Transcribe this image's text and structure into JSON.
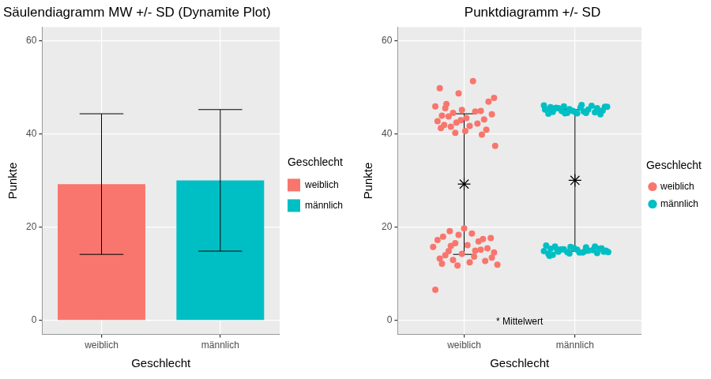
{
  "chart_data": [
    {
      "type": "bar",
      "title": "Säulendiagramm MW +/- SD (Dynamite Plot)",
      "x_label": "Geschlecht",
      "y_label": "Punkte",
      "categories": [
        "weiblich",
        "männlich"
      ],
      "values": [
        29.3,
        30.1
      ],
      "error": [
        15.1,
        15.2
      ],
      "colors": [
        "#F8766D",
        "#00BFC4"
      ],
      "ylim": [
        -3,
        63
      ],
      "yticks": [
        0,
        20,
        40,
        60
      ],
      "grid": true,
      "legend": "right",
      "legend_title": "Geschlecht"
    },
    {
      "type": "scatter",
      "title": "Punktdiagramm +/- SD",
      "x_label": "Geschlecht",
      "y_label": "Punkte",
      "xlim": [
        0.4,
        2.6
      ],
      "xticks": [
        {
          "value": 1,
          "label": "weiblich"
        },
        {
          "value": 2,
          "label": "männlich"
        }
      ],
      "ylim": [
        -3,
        63
      ],
      "yticks": [
        0,
        20,
        40,
        60
      ],
      "grid": true,
      "legend": "right",
      "legend_title": "Geschlecht",
      "annotation": "* Mittelwert",
      "series": [
        {
          "name": "weiblich",
          "color": "#F8766D",
          "marker": "circle",
          "x": [
            0.78,
            1.08,
            0.95,
            1.27,
            1.22,
            0.84,
            0.98,
            1.15,
            0.9,
            1.25,
            0.8,
            0.86,
            1.02,
            1.18,
            0.76,
            0.93,
            1.12,
            0.82,
            1.05,
            0.88,
            0.79,
            1.2,
            1.01,
            0.92,
            1.16,
            1.28,
            0.83,
            1.1,
            0.97,
            0.74,
            1.0,
            0.87,
            1.07,
            0.95,
            0.81,
            1.24,
            0.76,
            1.13,
            0.92,
            1.03,
            0.72,
            1.21,
            1.15,
            0.86,
            1.27,
            0.98,
            0.83,
            1.09,
            0.78,
            0.9,
            1.19,
            1.05,
            0.8,
            0.94,
            0.74,
            1.1,
            0.88,
            1.25,
            1.17,
            1.3
          ],
          "values": [
            49.9,
            51.4,
            48.8,
            47.8,
            47.0,
            46.5,
            45.2,
            45.0,
            44.6,
            44.3,
            44.0,
            43.8,
            43.5,
            43.2,
            42.8,
            42.5,
            42.3,
            42.0,
            41.8,
            41.6,
            41.3,
            41.0,
            40.7,
            40.3,
            39.9,
            37.5,
            45.6,
            44.9,
            43.0,
            46.0,
            19.8,
            19.2,
            18.7,
            18.4,
            18.0,
            17.7,
            17.3,
            17.0,
            16.6,
            16.2,
            15.8,
            15.5,
            15.2,
            14.9,
            14.6,
            14.3,
            14.0,
            13.7,
            13.3,
            13.0,
            12.8,
            12.5,
            12.2,
            11.8,
            6.6,
            15.0,
            16.0,
            13.5,
            17.5,
            12.0
          ]
        },
        {
          "name": "männlich",
          "color": "#00BFC4",
          "marker": "circle",
          "x": [
            1.72,
            1.9,
            2.27,
            1.78,
            2.05,
            2.2,
            1.82,
            1.95,
            2.12,
            1.75,
            2.25,
            1.88,
            2.08,
            1.8,
            2.18,
            1.93,
            2.02,
            1.76,
            2.23,
            2.15,
            1.85,
            1.98,
            2.1,
            2.29,
            1.73,
            2.0,
            1.83,
            2.2,
            1.91,
            2.06,
            1.74,
            1.82,
            1.96,
            2.1,
            2.24,
            1.78,
            1.88,
            2.02,
            2.16,
            2.28,
            1.72,
            1.85,
            1.93,
            2.07,
            2.2,
            1.76,
            1.8,
            1.77,
            1.99,
            2.12,
            2.26,
            1.9,
            2.04,
            2.18,
            1.84,
            1.95,
            2.22,
            2.09,
            1.86,
            2.3
          ],
          "values": [
            46.2,
            46.0,
            45.9,
            45.8,
            45.7,
            45.6,
            45.5,
            45.4,
            45.3,
            45.2,
            45.1,
            45.0,
            44.9,
            44.8,
            44.7,
            44.6,
            44.5,
            44.4,
            44.3,
            46.1,
            45.6,
            45.0,
            44.6,
            45.9,
            45.3,
            44.8,
            45.7,
            45.1,
            44.5,
            46.3,
            16.1,
            15.9,
            15.8,
            15.7,
            15.5,
            15.4,
            15.3,
            15.2,
            15.1,
            15.0,
            14.9,
            14.8,
            14.7,
            14.6,
            14.5,
            14.3,
            14.1,
            13.9,
            15.6,
            15.0,
            14.8,
            15.3,
            14.6,
            15.9,
            15.1,
            14.4,
            15.4,
            14.9,
            15.2,
            14.7
          ]
        }
      ],
      "means": {
        "x": [
          1,
          2
        ],
        "values": [
          29.3,
          30.1
        ],
        "error": [
          15.1,
          15.2
        ],
        "marker": "star",
        "color": "#000000"
      }
    }
  ]
}
